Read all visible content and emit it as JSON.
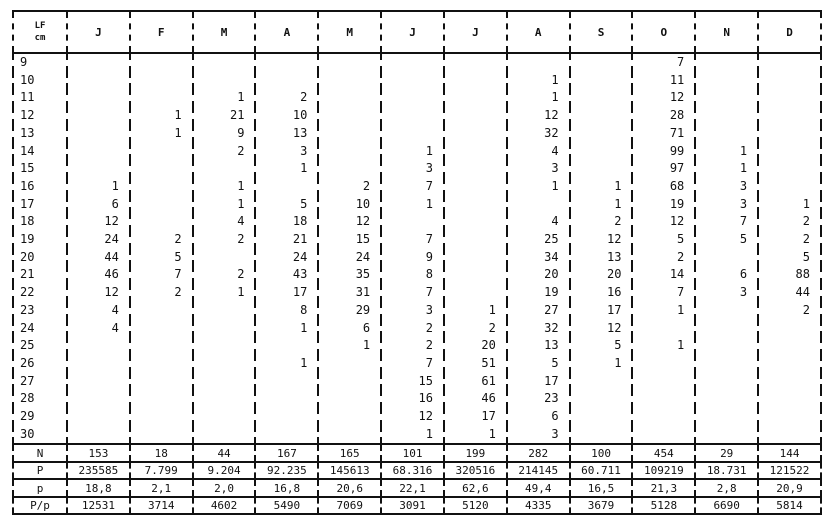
{
  "header": {
    "lf_label": "LF",
    "lf_unit": "cm",
    "months": [
      "J",
      "F",
      "M",
      "A",
      "M",
      "J",
      "J",
      "A",
      "S",
      "O",
      "N",
      "D"
    ]
  },
  "rows": [
    {
      "lf": "9",
      "values": [
        "",
        "",
        "",
        "",
        "",
        "",
        "",
        "",
        "",
        "7",
        "",
        ""
      ]
    },
    {
      "lf": "10",
      "values": [
        "",
        "",
        "",
        "",
        "",
        "",
        "",
        "1",
        "",
        "11",
        "",
        ""
      ]
    },
    {
      "lf": "11",
      "values": [
        "",
        "",
        "1",
        "2",
        "",
        "",
        "",
        "1",
        "",
        "12",
        "",
        ""
      ]
    },
    {
      "lf": "12",
      "values": [
        "",
        "1",
        "21",
        "10",
        "",
        "",
        "",
        "12",
        "",
        "28",
        "",
        ""
      ]
    },
    {
      "lf": "13",
      "values": [
        "",
        "1",
        "9",
        "13",
        "",
        "",
        "",
        "32",
        "",
        "71",
        "",
        ""
      ]
    },
    {
      "lf": "14",
      "values": [
        "",
        "",
        "2",
        "3",
        "",
        "1",
        "",
        "4",
        "",
        "99",
        "1",
        ""
      ]
    },
    {
      "lf": "15",
      "values": [
        "",
        "",
        "",
        "1",
        "",
        "3",
        "",
        "3",
        "",
        "97",
        "1",
        ""
      ]
    },
    {
      "lf": "16",
      "values": [
        "1",
        "",
        "1",
        "",
        "2",
        "7",
        "",
        "1",
        "1",
        "68",
        "3",
        ""
      ]
    },
    {
      "lf": "17",
      "values": [
        "6",
        "",
        "1",
        "5",
        "10",
        "1",
        "",
        "",
        "1",
        "19",
        "3",
        "1"
      ]
    },
    {
      "lf": "18",
      "values": [
        "12",
        "",
        "4",
        "18",
        "12",
        "",
        "",
        "4",
        "2",
        "12",
        "7",
        "2"
      ]
    },
    {
      "lf": "19",
      "values": [
        "24",
        "2",
        "2",
        "21",
        "15",
        "7",
        "",
        "25",
        "12",
        "5",
        "5",
        "2"
      ]
    },
    {
      "lf": "20",
      "values": [
        "44",
        "5",
        "",
        "24",
        "24",
        "9",
        "",
        "34",
        "13",
        "2",
        "",
        "5"
      ]
    },
    {
      "lf": "21",
      "values": [
        "46",
        "7",
        "2",
        "43",
        "35",
        "8",
        "",
        "20",
        "20",
        "14",
        "6",
        "88"
      ]
    },
    {
      "lf": "22",
      "values": [
        "12",
        "2",
        "1",
        "17",
        "31",
        "7",
        "",
        "19",
        "16",
        "7",
        "3",
        "44"
      ]
    },
    {
      "lf": "23",
      "values": [
        "4",
        "",
        "",
        "8",
        "29",
        "3",
        "1",
        "27",
        "17",
        "1",
        "",
        "2"
      ]
    },
    {
      "lf": "24",
      "values": [
        "4",
        "",
        "",
        "1",
        "6",
        "2",
        "2",
        "32",
        "12",
        "",
        "",
        ""
      ]
    },
    {
      "lf": "25",
      "values": [
        "",
        "",
        "",
        "",
        "1",
        "2",
        "20",
        "13",
        "5",
        "1",
        "",
        ""
      ]
    },
    {
      "lf": "26",
      "values": [
        "",
        "",
        "",
        "1",
        "",
        "7",
        "51",
        "5",
        "1",
        "",
        "",
        ""
      ]
    },
    {
      "lf": "27",
      "values": [
        "",
        "",
        "",
        "",
        "",
        "15",
        "61",
        "17",
        "",
        "",
        "",
        ""
      ]
    },
    {
      "lf": "28",
      "values": [
        "",
        "",
        "",
        "",
        "",
        "16",
        "46",
        "23",
        "",
        "",
        "",
        ""
      ]
    },
    {
      "lf": "29",
      "values": [
        "",
        "",
        "",
        "",
        "",
        "12",
        "17",
        "6",
        "",
        "",
        "",
        ""
      ]
    },
    {
      "lf": "30",
      "values": [
        "",
        "",
        "",
        "",
        "",
        "1",
        "1",
        "3",
        "",
        "",
        "",
        ""
      ]
    }
  ],
  "summary": [
    {
      "label": "N",
      "values": [
        "153",
        "18",
        "44",
        "167",
        "165",
        "101",
        "199",
        "282",
        "100",
        "454",
        "29",
        "144"
      ]
    },
    {
      "label": "P",
      "values": [
        "235585",
        "7.799",
        "9.204",
        "92.235",
        "145613",
        "68.316",
        "320516",
        "214145",
        "60.711",
        "109219",
        "18.731",
        "121522"
      ]
    },
    {
      "label": "p",
      "values": [
        "18,8",
        "2,1",
        "2,0",
        "16,8",
        "20,6",
        "22,1",
        "62,6",
        "49,4",
        "16,5",
        "21,3",
        "2,8",
        "20,9"
      ]
    },
    {
      "label": "P/p",
      "values": [
        "12531",
        "3714",
        "4602",
        "5490",
        "7069",
        "3091",
        "5120",
        "4335",
        "3679",
        "5128",
        "6690",
        "5814"
      ]
    }
  ]
}
